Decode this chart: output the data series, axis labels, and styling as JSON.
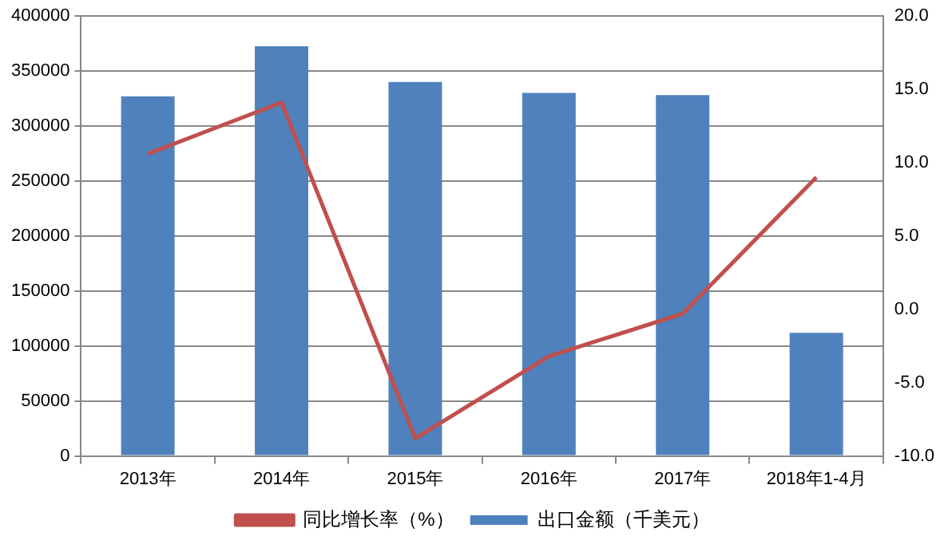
{
  "chart_data": {
    "type": "bar",
    "categories": [
      "2013年",
      "2014年",
      "2015年",
      "2016年",
      "2017年",
      "2018年1-4月"
    ],
    "series": [
      {
        "name": "出口金额（千美元）",
        "color": "#4f81bd",
        "values": [
          327000,
          372500,
          340000,
          330000,
          328000,
          112000
        ]
      },
      {
        "name": "同比增长率（%）",
        "type": "line",
        "axis": "y2",
        "color": "#c0504d",
        "values": [
          10.6,
          14.1,
          -8.8,
          -3.2,
          -0.3,
          9.0
        ]
      }
    ],
    "ylim": [
      0,
      400000
    ],
    "yticks": [
      0,
      50000,
      100000,
      150000,
      200000,
      250000,
      300000,
      350000,
      400000
    ],
    "y2lim": [
      -10,
      20
    ],
    "y2ticks": [
      {
        "value": -10,
        "label": "-10.0"
      },
      {
        "value": -5,
        "label": "-5.0"
      },
      {
        "value": 0,
        "label": "0.0"
      },
      {
        "value": 5,
        "label": "5.0"
      },
      {
        "value": 10,
        "label": "10.0"
      },
      {
        "value": 15,
        "label": "15.0"
      },
      {
        "value": 20,
        "label": "20.0"
      }
    ],
    "grid": "y",
    "legend": "bottom",
    "marker": "none"
  }
}
